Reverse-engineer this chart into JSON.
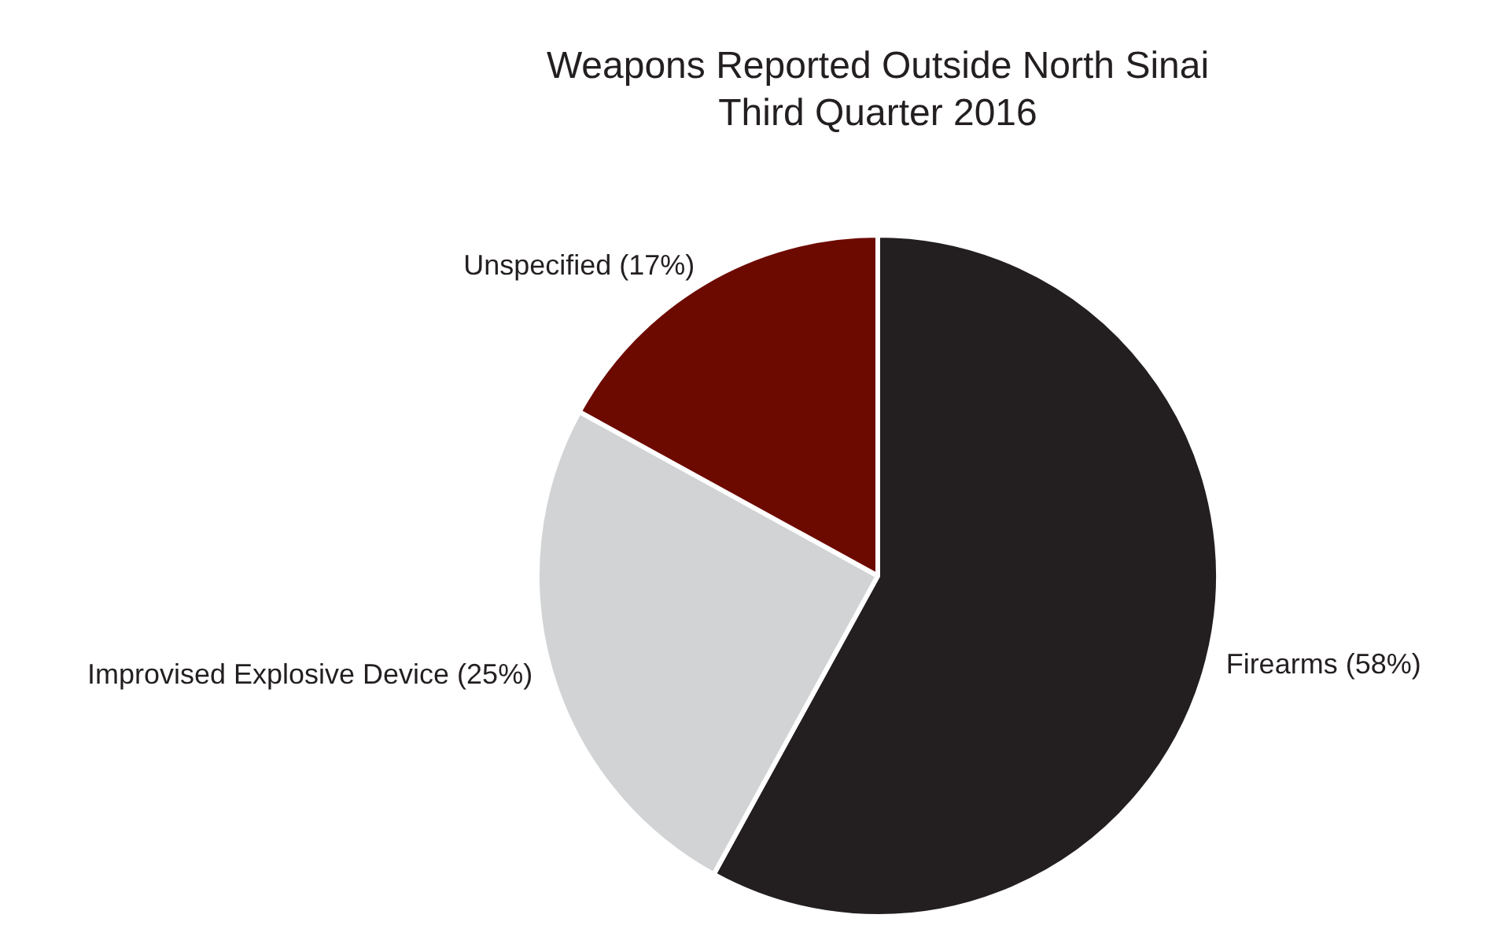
{
  "chart_data": {
    "type": "pie",
    "title": "Weapons Reported Outside North Sinai",
    "subtitle": "Third Quarter 2016",
    "categories": [
      "Firearms (58%)",
      "Improvised Explosive Device (25%)",
      "Unspecified (17%)"
    ],
    "values": [
      58,
      25,
      17
    ],
    "colors": [
      "#231f20",
      "#d1d3d4",
      "#6d0a00"
    ],
    "legend": false
  }
}
